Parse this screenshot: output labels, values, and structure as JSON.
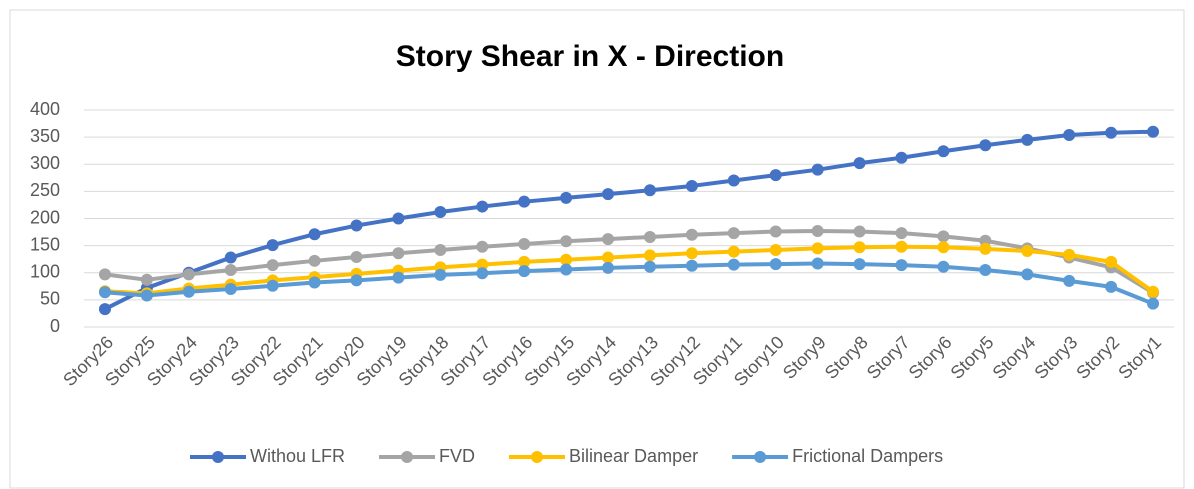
{
  "chart_data": {
    "type": "line",
    "title": "Story Shear in X - Direction",
    "categories": [
      "Story26",
      "Story25",
      "Story24",
      "Story23",
      "Story22",
      "Story21",
      "Story20",
      "Story19",
      "Story18",
      "Story17",
      "Story16",
      "Story15",
      "Story14",
      "Story13",
      "Story12",
      "Story11",
      "Story10",
      "Story9",
      "Story8",
      "Story7",
      "Story6",
      "Story5",
      "Story4",
      "Story3",
      "Story2",
      "Story1"
    ],
    "series": [
      {
        "name": "Withou LFR",
        "color": "#4472c4",
        "values": [
          33,
          72,
          100,
          128,
          151,
          171,
          187,
          200,
          212,
          222,
          231,
          238,
          245,
          252,
          260,
          270,
          280,
          290,
          302,
          312,
          324,
          335,
          345,
          354,
          358,
          360
        ]
      },
      {
        "name": "FVD",
        "color": "#a5a5a5",
        "values": [
          97,
          87,
          97,
          105,
          114,
          122,
          129,
          136,
          142,
          148,
          153,
          158,
          162,
          166,
          170,
          173,
          176,
          177,
          176,
          173,
          167,
          159,
          145,
          128,
          110,
          63
        ]
      },
      {
        "name": "Bilinear Damper",
        "color": "#ffc000",
        "values": [
          66,
          62,
          71,
          78,
          86,
          92,
          98,
          104,
          110,
          115,
          120,
          124,
          128,
          132,
          136,
          139,
          142,
          145,
          147,
          148,
          147,
          144,
          140,
          133,
          120,
          65
        ]
      },
      {
        "name": "Frictional Dampers",
        "color": "#5b9bd5",
        "values": [
          64,
          58,
          65,
          70,
          76,
          82,
          86,
          91,
          96,
          99,
          103,
          106,
          109,
          111,
          113,
          115,
          116,
          117,
          116,
          114,
          111,
          105,
          97,
          85,
          74,
          43
        ]
      }
    ],
    "ylim": [
      0,
      400
    ],
    "yticks": [
      0,
      50,
      100,
      150,
      200,
      250,
      300,
      350,
      400
    ],
    "grid": true,
    "legend": "bottom"
  }
}
